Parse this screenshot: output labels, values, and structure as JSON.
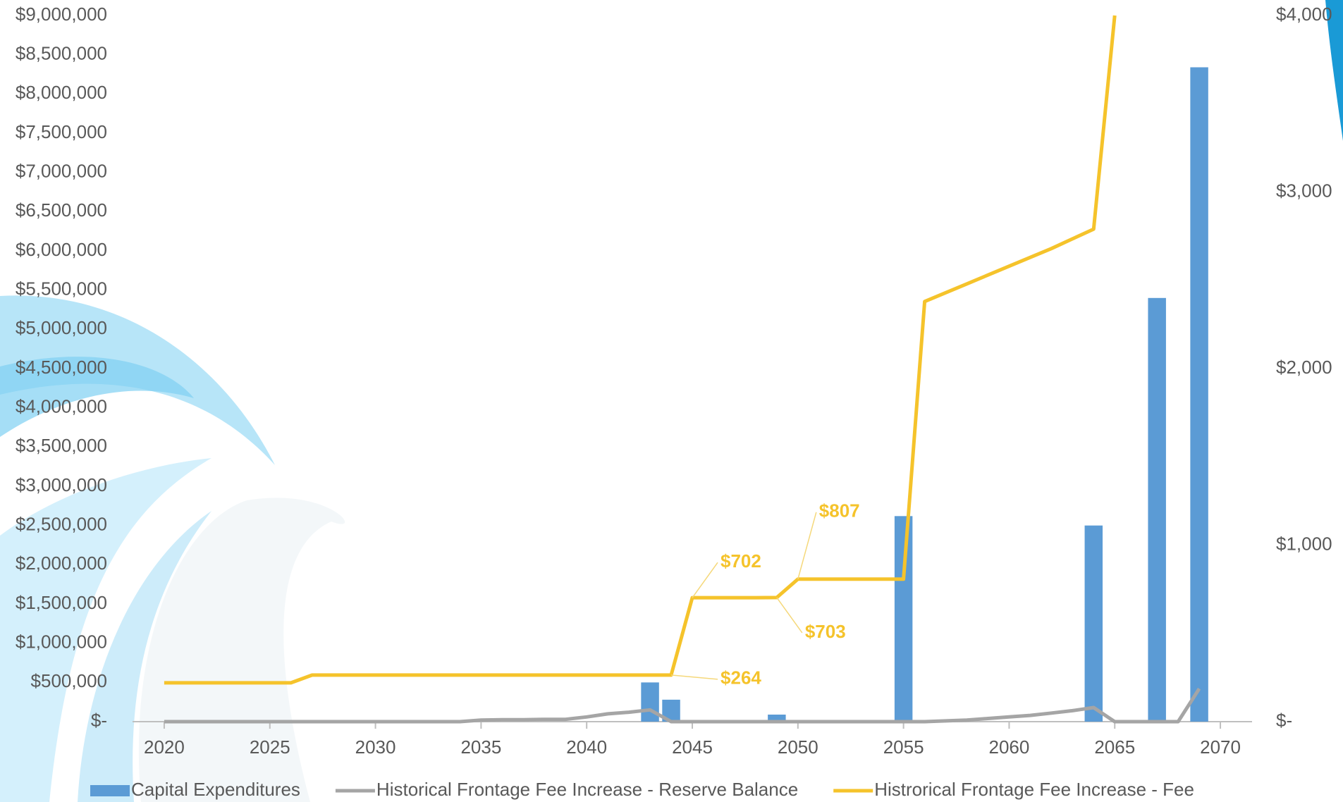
{
  "chart_data": {
    "type": "bar-line",
    "x": [
      2020,
      2021,
      2022,
      2023,
      2024,
      2025,
      2026,
      2027,
      2028,
      2029,
      2030,
      2031,
      2032,
      2033,
      2034,
      2035,
      2036,
      2037,
      2038,
      2039,
      2040,
      2041,
      2042,
      2043,
      2044,
      2045,
      2046,
      2047,
      2048,
      2049,
      2050,
      2051,
      2052,
      2053,
      2054,
      2055,
      2056,
      2057,
      2058,
      2059,
      2060,
      2061,
      2062,
      2063,
      2064,
      2065,
      2066,
      2067,
      2068,
      2069
    ],
    "xlim": [
      2018.5,
      2071.5
    ],
    "xticks": [
      2020,
      2025,
      2030,
      2035,
      2040,
      2045,
      2050,
      2055,
      2060,
      2065,
      2070
    ],
    "ylim": [
      0,
      9000000
    ],
    "yticks": [
      {
        "value": 0,
        "label": "$-"
      },
      {
        "value": 500000,
        "label": "$500,000"
      },
      {
        "value": 1000000,
        "label": "$1,000,000"
      },
      {
        "value": 1500000,
        "label": "$1,500,000"
      },
      {
        "value": 2000000,
        "label": "$2,000,000"
      },
      {
        "value": 2500000,
        "label": "$2,500,000"
      },
      {
        "value": 3000000,
        "label": "$3,000,000"
      },
      {
        "value": 3500000,
        "label": "$3,500,000"
      },
      {
        "value": 4000000,
        "label": "$4,000,000"
      },
      {
        "value": 4500000,
        "label": "$4,500,000"
      },
      {
        "value": 5000000,
        "label": "$5,000,000"
      },
      {
        "value": 5500000,
        "label": "$5,500,000"
      },
      {
        "value": 6000000,
        "label": "$6,000,000"
      },
      {
        "value": 6500000,
        "label": "$6,500,000"
      },
      {
        "value": 7000000,
        "label": "$7,000,000"
      },
      {
        "value": 7500000,
        "label": "$7,500,000"
      },
      {
        "value": 8000000,
        "label": "$8,000,000"
      },
      {
        "value": 8500000,
        "label": "$8,500,000"
      },
      {
        "value": 9000000,
        "label": "$9,000,000"
      }
    ],
    "y2lim": [
      0,
      4000
    ],
    "y2ticks": [
      {
        "value": 0,
        "label": "$-"
      },
      {
        "value": 1000,
        "label": "$1,000"
      },
      {
        "value": 2000,
        "label": "$2,000"
      },
      {
        "value": 3000,
        "label": "$3,000"
      },
      {
        "value": 4000,
        "label": "$4,000"
      }
    ],
    "series": [
      {
        "name": "Capital Expenditures",
        "type": "bar",
        "color": "#5b9bd5",
        "values": [
          0,
          0,
          0,
          0,
          0,
          0,
          0,
          0,
          0,
          0,
          0,
          0,
          0,
          0,
          0,
          0,
          0,
          0,
          0,
          0,
          0,
          0,
          0,
          500000,
          280000,
          0,
          0,
          0,
          0,
          90000,
          0,
          0,
          0,
          0,
          0,
          2620000,
          0,
          0,
          0,
          0,
          0,
          0,
          0,
          0,
          2500000,
          0,
          0,
          5400000,
          0,
          8340000
        ]
      },
      {
        "name": "Historical Frontage Fee Increase - Reserve Balance",
        "type": "line",
        "color": "#a5a5a5",
        "values": [
          0,
          0,
          0,
          0,
          0,
          0,
          0,
          0,
          0,
          0,
          0,
          0,
          0,
          0,
          0,
          20000,
          25000,
          25000,
          30000,
          30000,
          60000,
          100000,
          120000,
          150000,
          0,
          0,
          0,
          0,
          0,
          0,
          0,
          0,
          0,
          0,
          0,
          0,
          0,
          10000,
          20000,
          40000,
          60000,
          80000,
          110000,
          140000,
          180000,
          0,
          0,
          0,
          0,
          420000
        ]
      },
      {
        "name": "Histrorical Frontage Fee Increase - Fee",
        "type": "line",
        "axis": "y2",
        "color": "#f5c32b",
        "values": [
          220,
          220,
          220,
          220,
          220,
          220,
          220,
          264,
          264,
          264,
          264,
          264,
          264,
          264,
          264,
          264,
          264,
          264,
          264,
          264,
          264,
          264,
          264,
          264,
          264,
          702,
          702,
          702,
          702,
          703,
          807,
          807,
          807,
          807,
          807,
          807,
          2380,
          2430,
          2480,
          2530,
          2580,
          2630,
          2680,
          2735,
          2790,
          4000,
          null,
          null,
          null,
          null
        ],
        "value_labels": [
          null,
          null,
          null,
          null,
          null,
          null,
          null,
          null,
          null,
          null,
          null,
          null,
          null,
          null,
          null,
          null,
          null,
          null,
          null,
          null,
          null,
          null,
          null,
          null,
          "$264",
          "$702",
          null,
          null,
          null,
          "$703",
          "$807",
          null,
          null,
          null,
          null,
          null,
          null,
          null,
          null,
          null,
          null,
          null,
          null,
          null,
          null,
          null,
          null,
          null,
          null,
          null
        ]
      }
    ]
  }
}
